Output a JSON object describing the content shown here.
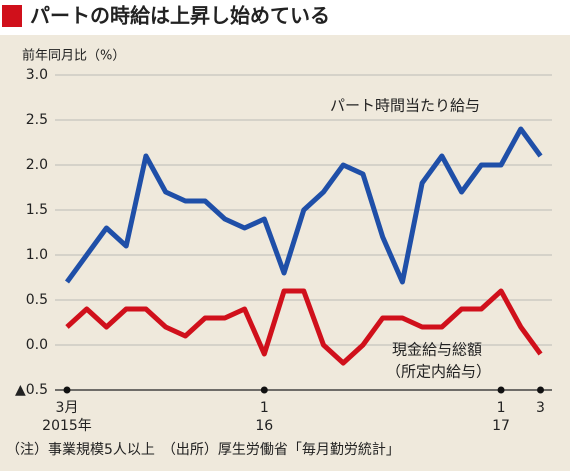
{
  "chart_data": {
    "type": "line",
    "title": "パートの時給は上昇し始めている",
    "y_axis_label": "前年同月比（%）",
    "categories": [
      "3月",
      null,
      null,
      null,
      null,
      null,
      null,
      null,
      null,
      null,
      "1",
      null,
      null,
      null,
      null,
      null,
      null,
      null,
      null,
      null,
      null,
      null,
      "1",
      null,
      "3"
    ],
    "category_sublabels": [
      "2015年",
      null,
      null,
      null,
      null,
      null,
      null,
      null,
      null,
      null,
      "16",
      null,
      null,
      null,
      null,
      null,
      null,
      null,
      null,
      null,
      null,
      null,
      "17",
      null,
      null
    ],
    "series": [
      {
        "name": "パート時間当たり給与",
        "color": "#1f4fa8",
        "values": [
          0.7,
          1.0,
          1.3,
          1.1,
          2.1,
          1.7,
          1.6,
          1.6,
          1.4,
          1.3,
          1.4,
          0.8,
          1.5,
          1.7,
          2.0,
          1.9,
          1.2,
          0.7,
          1.8,
          2.1,
          1.7,
          2.0,
          2.0,
          2.4,
          2.1
        ]
      },
      {
        "name": "現金給与総額",
        "name_note": "（所定内給与）",
        "color": "#d0101b",
        "values": [
          0.2,
          0.4,
          0.2,
          0.4,
          0.4,
          0.2,
          0.1,
          0.3,
          0.3,
          0.4,
          -0.1,
          0.6,
          0.6,
          0.0,
          -0.2,
          0.0,
          0.3,
          0.3,
          0.2,
          0.2,
          0.4,
          0.4,
          0.6,
          0.2,
          -0.1
        ]
      }
    ],
    "ylim": [
      -0.5,
      3.0
    ],
    "yticks": [
      {
        "value": -0.5,
        "label": "▲0.5"
      },
      {
        "value": 0,
        "label": "0.0"
      },
      0.5,
      {
        "value": 1,
        "label": "1.0"
      },
      1.5,
      {
        "value": 2,
        "label": "2.0"
      },
      2.5,
      {
        "value": 3,
        "label": "3.0"
      }
    ],
    "grid": true,
    "footnote": "（注）事業規模5人以上　（出所）厚生労働省「毎月勤労統計」"
  }
}
